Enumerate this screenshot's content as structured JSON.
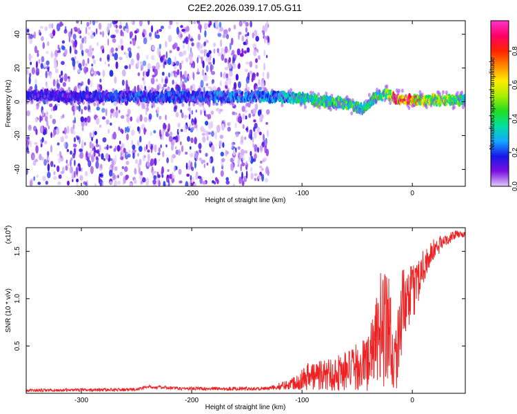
{
  "figure_title": "C2E2.2026.039.17.05.G11",
  "chart_data": [
    {
      "type": "heatmap",
      "title": "",
      "xlabel": "Height of straight line (km)",
      "ylabel": "Frequency (Hz)",
      "xlim": [
        -350,
        48
      ],
      "ylim": [
        -50,
        48
      ],
      "x_ticks": [
        -300,
        -200,
        -100,
        0
      ],
      "y_ticks": [
        -40,
        -20,
        0,
        20,
        40
      ],
      "colorbar": {
        "label": "Normalized spectral amplitude",
        "range": [
          0,
          0.98
        ],
        "ticks": [
          0.0,
          0.2,
          0.4,
          0.6,
          0.8
        ],
        "colormap": [
          "#e2ccfa",
          "#7a0ee0",
          "#1717e8",
          "#14a8ff",
          "#00e0a0",
          "#22dd22",
          "#aaee00",
          "#ffee00",
          "#ff8800",
          "#ff2200",
          "#ff0066",
          "#ff33cc"
        ]
      },
      "ridge": [
        {
          "x": -350,
          "freq": 4,
          "amp": 0.2
        },
        {
          "x": -300,
          "freq": 3,
          "amp": 0.2
        },
        {
          "x": -250,
          "freq": 3,
          "amp": 0.25
        },
        {
          "x": -200,
          "freq": 3,
          "amp": 0.25
        },
        {
          "x": -150,
          "freq": 3,
          "amp": 0.3
        },
        {
          "x": -120,
          "freq": 3,
          "amp": 0.35
        },
        {
          "x": -100,
          "freq": 2,
          "amp": 0.45
        },
        {
          "x": -80,
          "freq": 0,
          "amp": 0.5
        },
        {
          "x": -60,
          "freq": -1,
          "amp": 0.5
        },
        {
          "x": -45,
          "freq": -4,
          "amp": 0.45
        },
        {
          "x": -35,
          "freq": 2,
          "amp": 0.5
        },
        {
          "x": -25,
          "freq": 5,
          "amp": 0.55
        },
        {
          "x": -15,
          "freq": 2,
          "amp": 0.95
        },
        {
          "x": 0,
          "freq": 1,
          "amp": 0.95
        },
        {
          "x": 10,
          "freq": 1,
          "amp": 0.7
        },
        {
          "x": 48,
          "freq": 1,
          "amp": 0.5
        }
      ],
      "noise_region": {
        "x_range": [
          -350,
          -130
        ],
        "freq_range": [
          -50,
          48
        ]
      },
      "colors": {
        "frame": "#000000",
        "background": "#ffffff"
      }
    },
    {
      "type": "line",
      "title": "",
      "xlabel": "Height of straight line (km)",
      "ylabel": "SNR (10 * v/v)",
      "y_multiplier": "(x10^4)",
      "xlim": [
        -350,
        48
      ],
      "ylim": [
        0,
        1.75
      ],
      "x_ticks": [
        -300,
        -200,
        -100,
        0
      ],
      "y_ticks": [
        0.5,
        1.0,
        1.5
      ],
      "series": [
        {
          "color": "#ee2222",
          "mean": [
            {
              "x": -350,
              "y": 0.03
            },
            {
              "x": -250,
              "y": 0.04
            },
            {
              "x": -240,
              "y": 0.07
            },
            {
              "x": -210,
              "y": 0.05
            },
            {
              "x": -130,
              "y": 0.05
            },
            {
              "x": -110,
              "y": 0.1
            },
            {
              "x": -95,
              "y": 0.18
            },
            {
              "x": -75,
              "y": 0.2
            },
            {
              "x": -55,
              "y": 0.25
            },
            {
              "x": -40,
              "y": 0.33
            },
            {
              "x": -30,
              "y": 0.65
            },
            {
              "x": -25,
              "y": 0.8
            },
            {
              "x": -20,
              "y": 0.7
            },
            {
              "x": -17,
              "y": 0.3
            },
            {
              "x": -14,
              "y": 0.45
            },
            {
              "x": -10,
              "y": 0.85
            },
            {
              "x": 0,
              "y": 1.05
            },
            {
              "x": 10,
              "y": 1.35
            },
            {
              "x": 20,
              "y": 1.52
            },
            {
              "x": 30,
              "y": 1.62
            },
            {
              "x": 40,
              "y": 1.68
            },
            {
              "x": 48,
              "y": 1.68
            }
          ],
          "spread": [
            {
              "x": -350,
              "y": 0.015
            },
            {
              "x": -130,
              "y": 0.02
            },
            {
              "x": -110,
              "y": 0.06
            },
            {
              "x": -95,
              "y": 0.15
            },
            {
              "x": -75,
              "y": 0.18
            },
            {
              "x": -50,
              "y": 0.25
            },
            {
              "x": -35,
              "y": 0.35
            },
            {
              "x": -25,
              "y": 0.75
            },
            {
              "x": -17,
              "y": 0.35
            },
            {
              "x": -10,
              "y": 0.45
            },
            {
              "x": 0,
              "y": 0.3
            },
            {
              "x": 15,
              "y": 0.15
            },
            {
              "x": 30,
              "y": 0.06
            },
            {
              "x": 48,
              "y": 0.03
            }
          ]
        }
      ]
    }
  ]
}
